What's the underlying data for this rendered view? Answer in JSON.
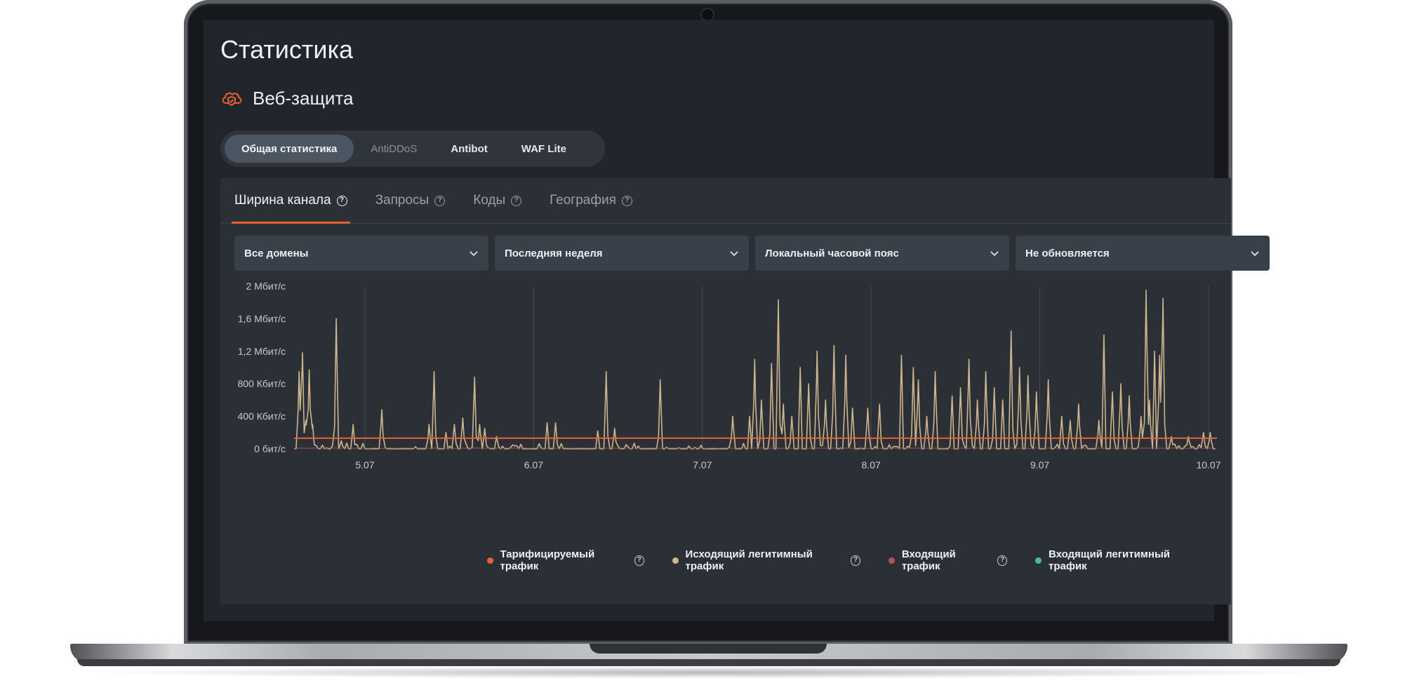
{
  "page": {
    "title": "Статистика"
  },
  "section": {
    "title": "Веб-защита",
    "icon": "cloud-shield-icon"
  },
  "segments": [
    {
      "label": "Общая статистика",
      "active": true
    },
    {
      "label": "AntiDDoS",
      "dim": true
    },
    {
      "label": "Antibot"
    },
    {
      "label": "WAF Lite"
    }
  ],
  "tabs": [
    {
      "label": "Ширина канала",
      "active": true
    },
    {
      "label": "Запросы"
    },
    {
      "label": "Коды"
    },
    {
      "label": "География"
    }
  ],
  "filters": {
    "domains": "Все домены",
    "period": "Последняя неделя",
    "timezone": "Локальный часовой пояс",
    "refresh": "Не обновляется"
  },
  "colors": {
    "accent": "#e8622f",
    "billed": "#e8622f",
    "outgoing_legit": "#cdb68e",
    "incoming": "#b5505a",
    "incoming_legit": "#3fbfa8"
  },
  "chart_data": {
    "type": "line",
    "y_ticks": [
      "0 бит/с",
      "400 Кбит/с",
      "800 Кбит/с",
      "1,2 Мбит/с",
      "1,6 Мбит/с",
      "2 Мбит/с"
    ],
    "ylim_mbps": [
      0,
      2
    ],
    "x_ticks": [
      "5.07",
      "6.07",
      "7.07",
      "8.07",
      "9.07",
      "10.07"
    ],
    "xlim_days": [
      4.65,
      10.12
    ],
    "billed_level_mbps": 0.13,
    "series": [
      {
        "name": "Тарифицируемый трафик",
        "color": "#e8622f",
        "constant": 0.13
      },
      {
        "name": "Исходящий легитимный трафик",
        "color": "#cdb68e",
        "peaks": [
          [
            4.68,
            0.95
          ],
          [
            4.7,
            1.18
          ],
          [
            4.72,
            0.35
          ],
          [
            4.74,
            0.97
          ],
          [
            4.76,
            0.3
          ],
          [
            4.9,
            1.6
          ],
          [
            4.93,
            0.1
          ],
          [
            5.0,
            0.3
          ],
          [
            5.17,
            0.48
          ],
          [
            5.45,
            0.3
          ],
          [
            5.48,
            0.95
          ],
          [
            5.55,
            0.2
          ],
          [
            5.6,
            0.3
          ],
          [
            5.65,
            0.38
          ],
          [
            5.72,
            0.88
          ],
          [
            5.75,
            0.3
          ],
          [
            5.78,
            0.25
          ],
          [
            5.85,
            0.15
          ],
          [
            6.15,
            0.32
          ],
          [
            6.2,
            0.32
          ],
          [
            6.45,
            0.22
          ],
          [
            6.5,
            0.95
          ],
          [
            6.55,
            0.25
          ],
          [
            6.82,
            0.85
          ],
          [
            7.25,
            0.4
          ],
          [
            7.35,
            0.4
          ],
          [
            7.38,
            1.1
          ],
          [
            7.42,
            0.6
          ],
          [
            7.48,
            1.05
          ],
          [
            7.52,
            1.83
          ],
          [
            7.55,
            0.55
          ],
          [
            7.6,
            0.4
          ],
          [
            7.65,
            1.0
          ],
          [
            7.7,
            0.8
          ],
          [
            7.75,
            1.2
          ],
          [
            7.8,
            0.6
          ],
          [
            7.85,
            1.27
          ],
          [
            7.92,
            1.15
          ],
          [
            7.96,
            0.5
          ],
          [
            8.05,
            0.5
          ],
          [
            8.12,
            0.55
          ],
          [
            8.25,
            1.15
          ],
          [
            8.32,
            1.0
          ],
          [
            8.35,
            0.85
          ],
          [
            8.4,
            0.4
          ],
          [
            8.45,
            0.95
          ],
          [
            8.55,
            0.65
          ],
          [
            8.6,
            0.75
          ],
          [
            8.65,
            1.1
          ],
          [
            8.7,
            0.6
          ],
          [
            8.75,
            0.95
          ],
          [
            8.8,
            0.75
          ],
          [
            8.85,
            0.6
          ],
          [
            8.9,
            1.45
          ],
          [
            8.95,
            1.0
          ],
          [
            9.0,
            0.9
          ],
          [
            9.05,
            0.7
          ],
          [
            9.12,
            0.85
          ],
          [
            9.2,
            0.4
          ],
          [
            9.25,
            0.35
          ],
          [
            9.3,
            0.55
          ],
          [
            9.42,
            0.35
          ],
          [
            9.45,
            1.4
          ],
          [
            9.5,
            0.7
          ],
          [
            9.55,
            0.8
          ],
          [
            9.6,
            0.65
          ],
          [
            9.67,
            0.4
          ],
          [
            9.7,
            1.95
          ],
          [
            9.72,
            0.6
          ],
          [
            9.75,
            1.2
          ],
          [
            9.78,
            1.15
          ],
          [
            9.8,
            1.85
          ],
          [
            9.85,
            0.15
          ],
          [
            9.95,
            0.15
          ],
          [
            10.04,
            0.2
          ],
          [
            10.08,
            0.2
          ]
        ]
      },
      {
        "name": "Входящий трафик",
        "color": "#b5505a"
      },
      {
        "name": "Входящий легитимный трафик",
        "color": "#3fbfa8"
      }
    ]
  },
  "legend": [
    {
      "label": "Тарифицируемый трафик",
      "color": "#e8622f",
      "help": true
    },
    {
      "label": "Исходящий легитимный трафик",
      "color": "#cdb68e",
      "help": true
    },
    {
      "label": "Входящий трафик",
      "color": "#b5505a",
      "help": true
    },
    {
      "label": "Входящий легитимный трафик",
      "color": "#3fbfa8",
      "help": false
    }
  ]
}
